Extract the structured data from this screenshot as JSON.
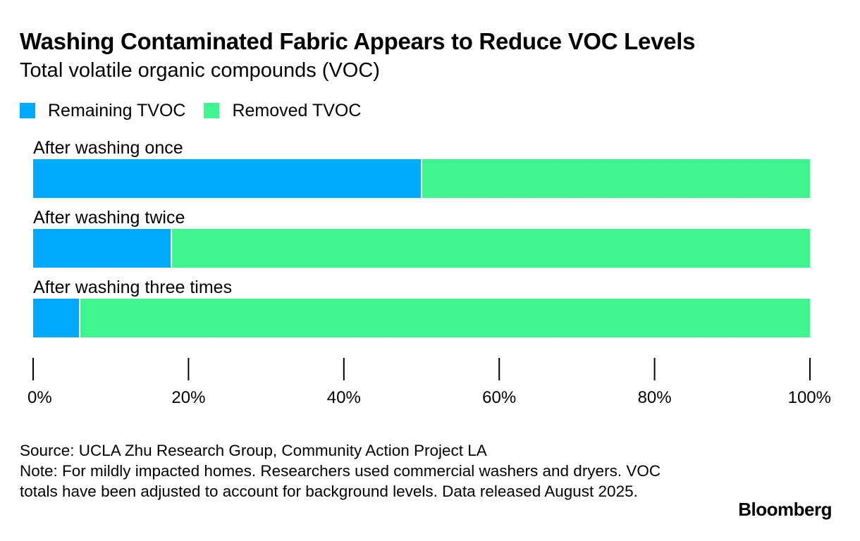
{
  "header": {
    "title": "Washing Contaminated Fabric Appears to Reduce VOC Levels",
    "subtitle": "Total volatile organic compounds (VOC)"
  },
  "legend": [
    {
      "label": "Remaining TVOC",
      "color": "#00aaff"
    },
    {
      "label": "Removed TVOC",
      "color": "#40f58e"
    }
  ],
  "chart_data": {
    "type": "bar",
    "orientation": "horizontal",
    "stacked": true,
    "categories": [
      "After washing once",
      "After washing twice",
      "After washing three times"
    ],
    "series": [
      {
        "name": "Remaining TVOC",
        "color": "#00aaff",
        "values": [
          50,
          17.8,
          6
        ]
      },
      {
        "name": "Removed TVOC",
        "color": "#40f58e",
        "values": [
          50,
          82.2,
          94
        ]
      }
    ],
    "xlim": [
      0,
      100
    ],
    "x_ticks": [
      "0%",
      "20%",
      "40%",
      "60%",
      "80%",
      "100%"
    ],
    "grid": false,
    "legend_position": "top-left"
  },
  "footer": {
    "source": "Source: UCLA Zhu Research Group, Community Action Project LA",
    "note": "Note: For mildly impacted homes. Researchers used commercial washers and dryers. VOC totals have been adjusted to account for background levels. Data released August 2025."
  },
  "brand": "Bloomberg"
}
